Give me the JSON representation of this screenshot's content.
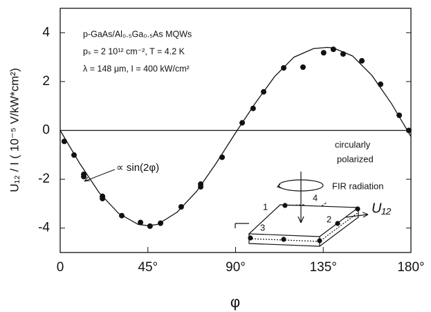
{
  "chart_data": {
    "type": "scatter",
    "xlabel": "φ",
    "ylabel": "U₁₂ / I  ( 10⁻⁵ V/kW*cm²)",
    "xlim": [
      0,
      180
    ],
    "ylim": [
      -5,
      5
    ],
    "xticks": [
      0,
      {
        "value": 45,
        "label": "45°"
      },
      {
        "value": 90,
        "label": "90°"
      },
      {
        "value": 135,
        "label": "135°"
      },
      {
        "value": 180,
        "label": "180°"
      }
    ],
    "yticks": [
      4,
      2,
      0,
      -2,
      -4
    ],
    "zero_line": true,
    "annotations": [
      "p-GaAs/Al₀.₅Ga₀.₅As MQWs",
      "pₛ = 2 10¹² cm⁻², T = 4.2 K",
      "λ = 148 μm, I = 400 kW/cm²"
    ],
    "fit_label": "∝ sin(2φ)",
    "inset": {
      "text": [
        "circularly",
        "polarized",
        "FIR radiation"
      ],
      "contacts": [
        "1",
        "2",
        "3",
        "4"
      ],
      "voltage": "U₁₂"
    },
    "series": [
      {
        "mode": "markers",
        "color": "#111111",
        "x": [
          2.1,
          7.1,
          12.1,
          12.1,
          21.7,
          21.7,
          31.6,
          41.2,
          46.1,
          51.5,
          62.1,
          72.1,
          72.1,
          83.1,
          93.4,
          99.0,
          104.4,
          114.7,
          124.6,
          135.2,
          140.2,
          145.2,
          154.8,
          164.4,
          174.0,
          178.9
        ],
        "values": [
          -0.45,
          -1.01,
          -1.8,
          -1.89,
          -2.79,
          -2.7,
          -3.49,
          -3.77,
          -3.92,
          -3.8,
          -3.13,
          -2.31,
          -2.2,
          -1.1,
          0.31,
          0.9,
          1.58,
          2.56,
          2.59,
          3.18,
          3.32,
          3.13,
          2.85,
          1.89,
          0.62,
          0.0
        ]
      },
      {
        "mode": "line",
        "color": "#111111",
        "x": [
          0,
          10,
          20,
          30,
          40,
          45,
          50,
          60,
          70,
          80,
          90,
          100,
          110,
          120,
          130,
          137,
          140,
          150,
          160,
          170,
          180
        ],
        "values": [
          0,
          -1.35,
          -2.55,
          -3.4,
          -3.85,
          -3.9,
          -3.85,
          -3.35,
          -2.5,
          -1.35,
          -0.1,
          1.1,
          2.2,
          3.0,
          3.35,
          3.4,
          3.38,
          3.05,
          2.25,
          1.1,
          -0.25
        ]
      }
    ]
  }
}
